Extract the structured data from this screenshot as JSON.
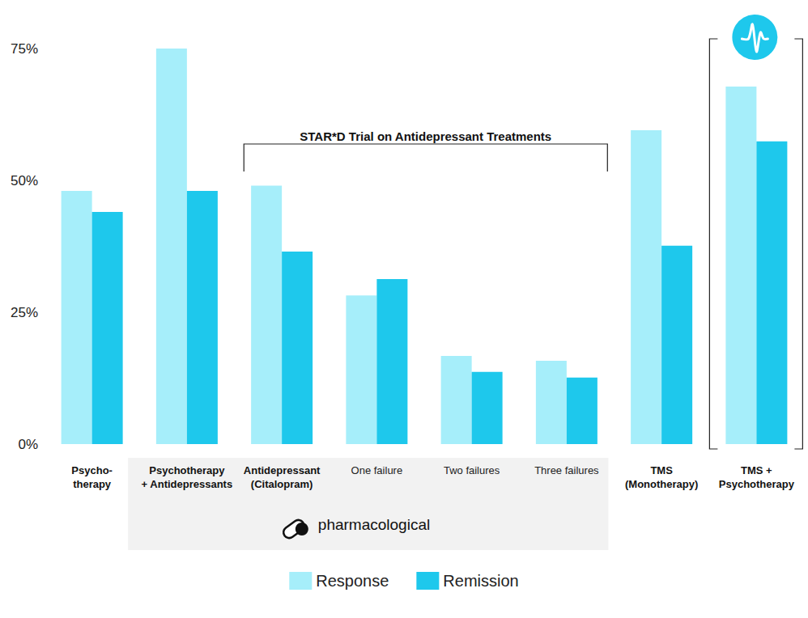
{
  "chart_data": {
    "type": "bar",
    "categories": [
      "Psycho-\ntherapy",
      "Psychotherapy\n+ Antidepressants",
      "Antidepressant\n(Citalopram)",
      "One failure",
      "Two failures",
      "Three failures",
      "TMS\n(Monotherapy)",
      "TMS +\nPsychotherapy"
    ],
    "series": [
      {
        "name": "Response",
        "color": "#a6eefa",
        "values": [
          48,
          75,
          49,
          28.2,
          16.7,
          15.8,
          59.5,
          67.8
        ]
      },
      {
        "name": "Remission",
        "color": "#1ec8ec",
        "values": [
          44,
          48,
          36.5,
          31.3,
          13.7,
          12.6,
          37.6,
          57.4
        ]
      }
    ],
    "ylim": [
      0,
      75
    ],
    "yticks": [
      {
        "value": 0,
        "label": "0%"
      },
      {
        "value": 25,
        "label": "25%"
      },
      {
        "value": 50,
        "label": "50%"
      },
      {
        "value": 75,
        "label": "75%"
      }
    ],
    "grid": false,
    "legend": "bottom",
    "annotations": [
      {
        "label": "STAR*D Trial on Antidepressant Treatments",
        "from": "Antidepressant\n(Citalopram)",
        "to": "Three failures"
      },
      {
        "label": "pharmacological",
        "from": "Psychotherapy\n+ Antidepressants",
        "to": "Three failures"
      }
    ]
  }
}
